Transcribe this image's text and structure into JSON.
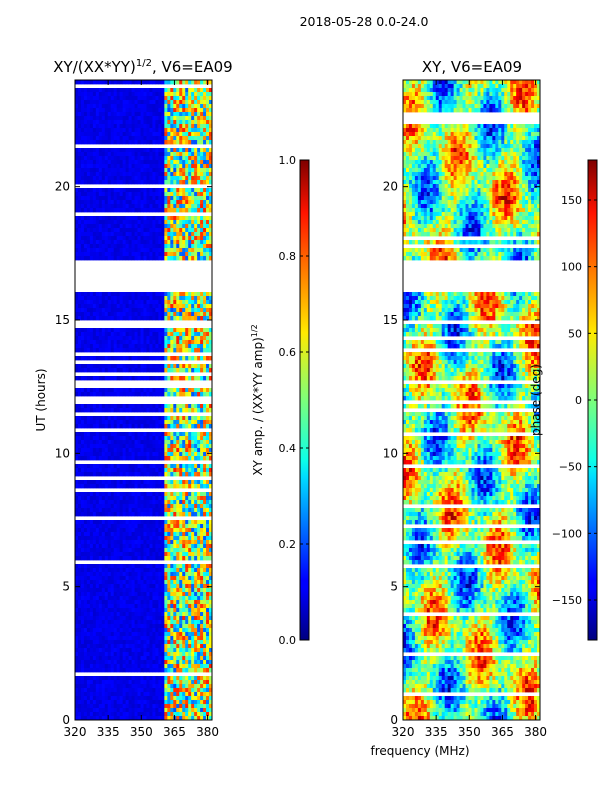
{
  "figure_title": "2018-05-28 0.0-24.0",
  "chart_data": [
    {
      "type": "heatmap",
      "title": "XY/(XX*YY)",
      "title_exponent": "1/2",
      "title_suffix": ", V6=EA09",
      "xlabel": "",
      "ylabel": "UT (hours)",
      "xlim": [
        320,
        382
      ],
      "ylim": [
        0,
        24
      ],
      "x_ticks": [
        320,
        335,
        350,
        365,
        380
      ],
      "y_ticks": [
        0,
        5,
        10,
        15,
        20
      ],
      "colorbar": {
        "label": "XY amp. / (XX*YY amp)",
        "label_exponent": "1/2",
        "range": [
          0.0,
          1.0
        ],
        "ticks": [
          "0.0",
          "0.2",
          "0.4",
          "0.6",
          "0.8",
          "1.0"
        ],
        "tick_values": [
          0.0,
          0.2,
          0.4,
          0.6,
          0.8,
          1.0
        ],
        "colormap": "jet"
      },
      "flagged_hours": [
        [
          16.1,
          17.3
        ]
      ],
      "data_description_values": {
        "low_band_level": 0.08,
        "high_band_start_mhz": 360,
        "high_band_level_range": [
          0.2,
          0.85
        ]
      }
    },
    {
      "type": "heatmap",
      "title": "XY, V6=EA09",
      "xlabel": "frequency (MHz)",
      "ylabel": "",
      "xlim": [
        320,
        382
      ],
      "ylim": [
        0,
        24
      ],
      "x_ticks": [
        320,
        335,
        350,
        365,
        380
      ],
      "y_ticks": [
        0,
        5,
        10,
        15,
        20
      ],
      "colorbar": {
        "label": "phase (deg)",
        "range": [
          -180,
          180
        ],
        "ticks": [
          "150",
          "100",
          "50",
          "0",
          "−50",
          "−100",
          "−150"
        ],
        "tick_values": [
          150,
          100,
          50,
          0,
          -50,
          -100,
          -150
        ],
        "colormap": "jet"
      },
      "flagged_hours": [
        [
          16.1,
          17.3
        ]
      ]
    }
  ]
}
